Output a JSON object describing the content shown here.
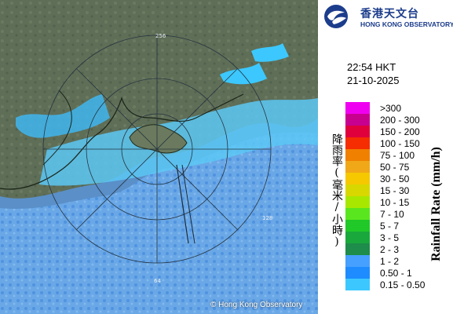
{
  "map": {
    "credit": "© Hong Kong Observatory",
    "range_ring_labels": [
      "64",
      "128",
      "256"
    ]
  },
  "branding": {
    "name_zh": "香港天文台",
    "name_en": "HONG KONG OBSERVATORY",
    "logo_icon": "hko-logo-icon"
  },
  "timestamp": {
    "time": "22:54 HKT",
    "date": "21-10-2025"
  },
  "legend": {
    "unit_zh": "降雨率(毫米/小時)",
    "unit_en": "Rainfall Rate (mm/h)",
    "items": [
      {
        "label": ">300",
        "color": "#f000f0"
      },
      {
        "label": "200 - 300",
        "color": "#c80090"
      },
      {
        "label": "150 - 200",
        "color": "#e0003c"
      },
      {
        "label": "100 - 150",
        "color": "#f52d00"
      },
      {
        "label": "75 - 100",
        "color": "#f08000"
      },
      {
        "label": "50 - 75",
        "color": "#f0a818"
      },
      {
        "label": "30 - 50",
        "color": "#f5c800"
      },
      {
        "label": "15 - 30",
        "color": "#d8d800"
      },
      {
        "label": "10 - 15",
        "color": "#a8e800"
      },
      {
        "label": "7 - 10",
        "color": "#5ae61e"
      },
      {
        "label": "5 - 7",
        "color": "#20c828"
      },
      {
        "label": "3 - 5",
        "color": "#18a83c"
      },
      {
        "label": "2 - 3",
        "color": "#1e8c4a"
      },
      {
        "label": "1 - 2",
        "color": "#46a0ff"
      },
      {
        "label": "0.50 - 1",
        "color": "#1e8cff"
      },
      {
        "label": "0.15 - 0.50",
        "color": "#3cc8ff"
      }
    ]
  }
}
